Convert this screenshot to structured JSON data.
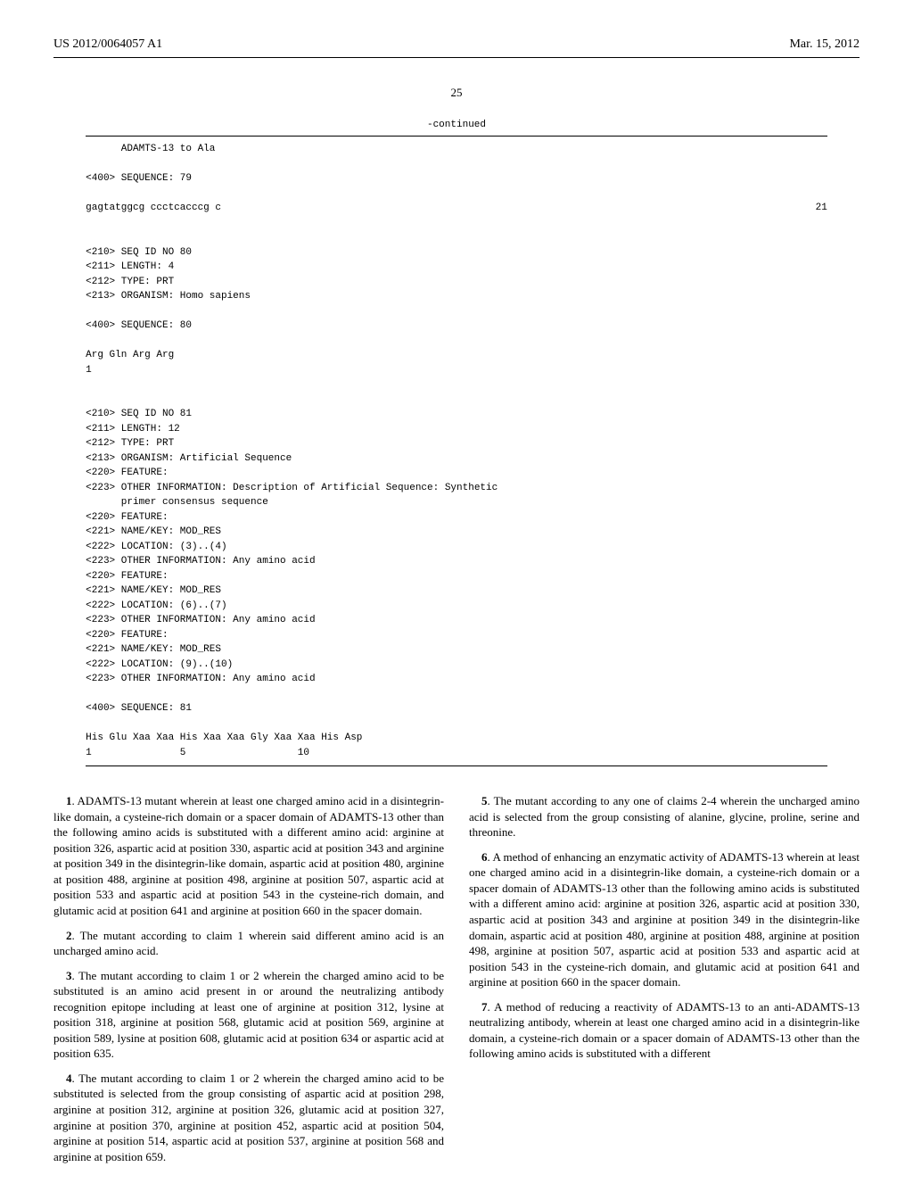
{
  "header": {
    "doc_number": "US 2012/0064057 A1",
    "date": "Mar. 15, 2012"
  },
  "page_number": "25",
  "continued_label": "-continued",
  "sequence_listing": "      ADAMTS-13 to Ala\n\n<400> SEQUENCE: 79\n\n",
  "seq79_left": "gagtatggcg ccctcacccg c",
  "seq79_right": "21",
  "sequence_listing2": "\n\n<210> SEQ ID NO 80\n<211> LENGTH: 4\n<212> TYPE: PRT\n<213> ORGANISM: Homo sapiens\n\n<400> SEQUENCE: 80\n\nArg Gln Arg Arg\n1\n\n\n<210> SEQ ID NO 81\n<211> LENGTH: 12\n<212> TYPE: PRT\n<213> ORGANISM: Artificial Sequence\n<220> FEATURE:\n<223> OTHER INFORMATION: Description of Artificial Sequence: Synthetic\n      primer consensus sequence\n<220> FEATURE:\n<221> NAME/KEY: MOD_RES\n<222> LOCATION: (3)..(4)\n<223> OTHER INFORMATION: Any amino acid\n<220> FEATURE:\n<221> NAME/KEY: MOD_RES\n<222> LOCATION: (6)..(7)\n<223> OTHER INFORMATION: Any amino acid\n<220> FEATURE:\n<221> NAME/KEY: MOD_RES\n<222> LOCATION: (9)..(10)\n<223> OTHER INFORMATION: Any amino acid\n\n<400> SEQUENCE: 81\n\nHis Glu Xaa Xaa His Xaa Xaa Gly Xaa Xaa His Asp\n1               5                   10",
  "claims": {
    "c1_num": "1",
    "c1": ". ADAMTS-13 mutant wherein at least one charged amino acid in a disintegrin-like domain, a cysteine-rich domain or a spacer domain of ADAMTS-13 other than the following amino acids is substituted with a different amino acid: arginine at position 326, aspartic acid at position 330, aspartic acid at position 343 and arginine at position 349 in the disintegrin-like domain, aspartic acid at position 480, arginine at position 488, arginine at position 498, arginine at position 507, aspartic acid at position 533 and aspartic acid at position 543 in the cysteine-rich domain, and glutamic acid at position 641 and arginine at position 660 in the spacer domain.",
    "c2_num": "2",
    "c2": ". The mutant according to claim 1 wherein said different amino acid is an uncharged amino acid.",
    "c3_num": "3",
    "c3": ". The mutant according to claim 1 or 2 wherein the charged amino acid to be substituted is an amino acid present in or around the neutralizing antibody recognition epitope including at least one of arginine at position 312, lysine at position 318, arginine at position 568, glutamic acid at position 569, arginine at position 589, lysine at position 608, glutamic acid at position 634 or aspartic acid at position 635.",
    "c4_num": "4",
    "c4": ". The mutant according to claim 1 or 2 wherein the charged amino acid to be substituted is selected from the group consisting of aspartic acid at position 298, arginine at position 312, arginine at position 326, glutamic acid at position 327, arginine at position 370, arginine at position 452, aspartic acid at position 504, arginine at position 514, aspartic acid at position 537, arginine at position 568 and arginine at position 659.",
    "c5_num": "5",
    "c5": ". The mutant according to any one of claims 2-4 wherein the uncharged amino acid is selected from the group consisting of alanine, glycine, proline, serine and threonine.",
    "c6_num": "6",
    "c6": ". A method of enhancing an enzymatic activity of ADAMTS-13 wherein at least one charged amino acid in a disintegrin-like domain, a cysteine-rich domain or a spacer domain of ADAMTS-13 other than the following amino acids is substituted with a different amino acid: arginine at position 326, aspartic acid at position 330, aspartic acid at position 343 and arginine at position 349 in the disintegrin-like domain, aspartic acid at position 480, arginine at position 488, arginine at position 498, arginine at position 507, aspartic acid at position 533 and aspartic acid at position 543 in the cysteine-rich domain, and glutamic acid at position 641 and arginine at position 660 in the spacer domain.",
    "c7_num": "7",
    "c7": ". A method of reducing a reactivity of ADAMTS-13 to an anti-ADAMTS-13 neutralizing antibody, wherein at least one charged amino acid in a disintegrin-like domain, a cysteine-rich domain or a spacer domain of ADAMTS-13 other than the following amino acids is substituted with a different"
  }
}
